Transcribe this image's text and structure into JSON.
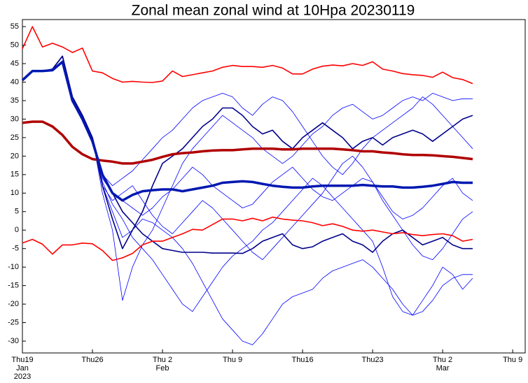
{
  "chart_data": {
    "type": "line",
    "title": "Zonal mean zonal wind at 10Hpa 20230119",
    "x": [
      0,
      1,
      2,
      3,
      4,
      5,
      6,
      7,
      8,
      9,
      10,
      11,
      12,
      13,
      14,
      15,
      16,
      17,
      18,
      19,
      20,
      21,
      22,
      23,
      24,
      25,
      26,
      27,
      28,
      29,
      30,
      31,
      32,
      33,
      34,
      35,
      36,
      37,
      38,
      39,
      40,
      41,
      42,
      43,
      44,
      45
    ],
    "xlim": [
      0,
      50.25
    ],
    "xticks": [
      {
        "value": 0,
        "label": "Thu19",
        "sub": [
          "Jan",
          "2023"
        ]
      },
      {
        "value": 7,
        "label": "Thu26"
      },
      {
        "value": 14,
        "label": "Thu 2",
        "sub": [
          "Feb"
        ]
      },
      {
        "value": 21,
        "label": "Thu 9"
      },
      {
        "value": 28,
        "label": "Thu16"
      },
      {
        "value": 35,
        "label": "Thu23"
      },
      {
        "value": 42,
        "label": "Thu 2",
        "sub": [
          "Mar"
        ]
      },
      {
        "value": 49,
        "label": "Thu 9"
      }
    ],
    "ylim": [
      -33.2,
      56.9
    ],
    "yticks": [
      -30,
      -25,
      -20,
      -15,
      -10,
      -5,
      0,
      5,
      10,
      15,
      20,
      25,
      30,
      35,
      40,
      45,
      50,
      55
    ],
    "series": [
      {
        "color": "#0000ff",
        "line_width": 0.8,
        "values": [
          40.5,
          43,
          43,
          43.5,
          47,
          36,
          31,
          25,
          12,
          5,
          -2,
          0,
          3,
          2,
          0,
          -2,
          -5,
          -9,
          -14,
          -19,
          -24,
          -27,
          -30,
          -31,
          -28,
          -24,
          -20,
          -18,
          -17,
          -16,
          -13,
          -11,
          -10,
          -9,
          -8,
          -10,
          -13,
          -16,
          -20,
          -23,
          -22,
          -19,
          -15,
          -13,
          -12,
          -12
        ]
      },
      {
        "color": "#0000ff",
        "line_width": 0.8,
        "values": [
          40.5,
          43,
          43,
          43.5,
          47,
          36,
          31,
          25,
          10,
          0,
          -19,
          -10,
          -4,
          0,
          6,
          12,
          18,
          22,
          25,
          28,
          31,
          29,
          27,
          25,
          22,
          20,
          18,
          20,
          23,
          26,
          28,
          31,
          33,
          34,
          32,
          30,
          31,
          33,
          35,
          36,
          35,
          37,
          36,
          35,
          35.5,
          35.5
        ]
      },
      {
        "color": "#0000ff",
        "line_width": 0.8,
        "values": [
          40.5,
          43,
          43,
          43.5,
          47,
          36,
          31,
          25,
          14,
          10,
          8,
          6,
          4,
          6,
          9,
          11,
          14,
          17,
          15,
          12,
          10,
          8,
          6,
          7,
          10,
          13,
          15,
          17,
          14,
          11,
          9,
          8,
          10,
          12,
          14,
          13,
          9,
          5,
          3,
          4,
          6,
          9,
          12,
          14,
          10,
          8
        ]
      },
      {
        "color": "#0000ff",
        "line_width": 0.8,
        "values": [
          40.5,
          43,
          43,
          43.5,
          47,
          36,
          31,
          25,
          13,
          7,
          3,
          -2,
          -5,
          -8,
          -12,
          -16,
          -20,
          -22,
          -18,
          -14,
          -10,
          -7,
          -5,
          -3,
          0,
          2,
          5,
          8,
          11,
          14,
          12,
          9,
          6,
          3,
          0,
          -3,
          -10,
          -18,
          -22,
          -23,
          -19,
          -15,
          -10,
          -12,
          -16,
          -13
        ]
      },
      {
        "color": "#0000ff",
        "line_width": 0.8,
        "values": [
          40.5,
          43,
          43,
          43.5,
          47,
          36,
          31,
          25,
          15,
          12,
          14,
          16,
          19,
          22,
          25,
          27,
          30,
          33,
          35,
          36,
          37,
          36,
          33,
          31,
          34,
          36,
          35,
          32,
          28,
          24,
          20,
          17,
          15,
          18,
          22,
          25,
          27,
          29,
          31,
          33,
          36,
          34,
          31,
          28,
          25,
          22
        ]
      },
      {
        "color": "#0000ff",
        "line_width": 0.8,
        "values": [
          40.5,
          43,
          43,
          43.5,
          47,
          36,
          31,
          25,
          12,
          8,
          10,
          12,
          8,
          4,
          1,
          -1,
          2,
          5,
          8,
          6,
          3,
          0,
          -3,
          -6,
          -8,
          -5,
          -2,
          1,
          4,
          7,
          10,
          14,
          18,
          20,
          17,
          13,
          8,
          4,
          0,
          -4,
          -7,
          -8,
          -5,
          -1,
          3,
          5
        ]
      },
      {
        "color": "#00008b",
        "line_width": 1.6,
        "values": [
          40.5,
          43,
          43,
          43.5,
          47,
          36,
          31,
          25,
          12,
          3,
          -5,
          0,
          5,
          12,
          18,
          20,
          22,
          25,
          28,
          30,
          33,
          33,
          31,
          28,
          26,
          27,
          24,
          22,
          25,
          27,
          29,
          27,
          25,
          22,
          24,
          25,
          23,
          25,
          26,
          27,
          26,
          24,
          26,
          28,
          30,
          31
        ]
      },
      {
        "color": "#00008b",
        "line_width": 1.6,
        "values": [
          40.5,
          43,
          43,
          43.5,
          47,
          36,
          31,
          25,
          15,
          10,
          5,
          2,
          -1,
          -3,
          -5,
          -5.5,
          -6,
          -6,
          -6,
          -6.2,
          -6.2,
          -6.2,
          -6.3,
          -5,
          -3,
          -2,
          -1,
          -4,
          -5,
          -4.5,
          -3,
          -2,
          -1,
          -3,
          -4,
          -6,
          -3,
          -1,
          0,
          -2,
          -4,
          -3,
          -2,
          -4,
          -5,
          -5
        ]
      },
      {
        "color": "#ff0000",
        "line_width": 1.6,
        "values": [
          49,
          55,
          49.5,
          50.5,
          49.5,
          48,
          49.2,
          43,
          42.5,
          41,
          40,
          40.2,
          40,
          39.9,
          40.3,
          43,
          41.5,
          42,
          42.5,
          43,
          44,
          44.5,
          44.2,
          44.2,
          44,
          44.5,
          43.8,
          42.2,
          42.2,
          43.5,
          44.3,
          44.6,
          44.4,
          45,
          44.5,
          45.5,
          43.5,
          43,
          42.3,
          42,
          41.8,
          41.3,
          42.7,
          41.2,
          40.7,
          39.6
        ]
      },
      {
        "color": "#ff0000",
        "line_width": 1.6,
        "values": [
          -3.5,
          -2.5,
          -3.8,
          -6.5,
          -4,
          -4,
          -3.5,
          -3.7,
          -5.5,
          -8.2,
          -7.5,
          -6.3,
          -4,
          -3,
          -3,
          -2,
          -1,
          0.2,
          0,
          1.5,
          3,
          3,
          2.5,
          3.2,
          2.5,
          3.5,
          3,
          2.7,
          2.5,
          2,
          1.2,
          1.7,
          1,
          0,
          -0.3,
          0,
          -0.5,
          -1,
          -0.7,
          -1.2,
          -1.5,
          -1.2,
          -1,
          -1.5,
          -3,
          -2.5
        ]
      },
      {
        "color": "#b00000",
        "line_width": 3.5,
        "values": [
          29,
          29.3,
          29.3,
          28,
          25.7,
          22.5,
          20.5,
          19.2,
          18.8,
          18.5,
          18,
          18,
          18.5,
          19,
          19.8,
          20.5,
          20.8,
          21,
          21.3,
          21.5,
          21.6,
          21.6,
          21.8,
          22,
          22,
          22,
          21.8,
          21.8,
          22,
          22,
          22,
          22,
          21.8,
          21.6,
          21.3,
          21.3,
          21,
          20.8,
          20.5,
          20.3,
          20.3,
          20.2,
          20,
          19.8,
          19.5,
          19.2
        ]
      },
      {
        "color": "#0018b0",
        "line_width": 3.5,
        "values": [
          40.5,
          43,
          43,
          43.2,
          45.5,
          35,
          30,
          24,
          15,
          10,
          8,
          9.5,
          10.5,
          10.8,
          11,
          11,
          10.5,
          11,
          11.5,
          12,
          12.8,
          13,
          13.2,
          13,
          12.5,
          12,
          11.7,
          11.5,
          11.5,
          11.8,
          12,
          12,
          12,
          12,
          12.2,
          12,
          11.8,
          11.8,
          11.5,
          11.5,
          11.7,
          12,
          12.5,
          13,
          12.8,
          12.8
        ]
      }
    ]
  }
}
